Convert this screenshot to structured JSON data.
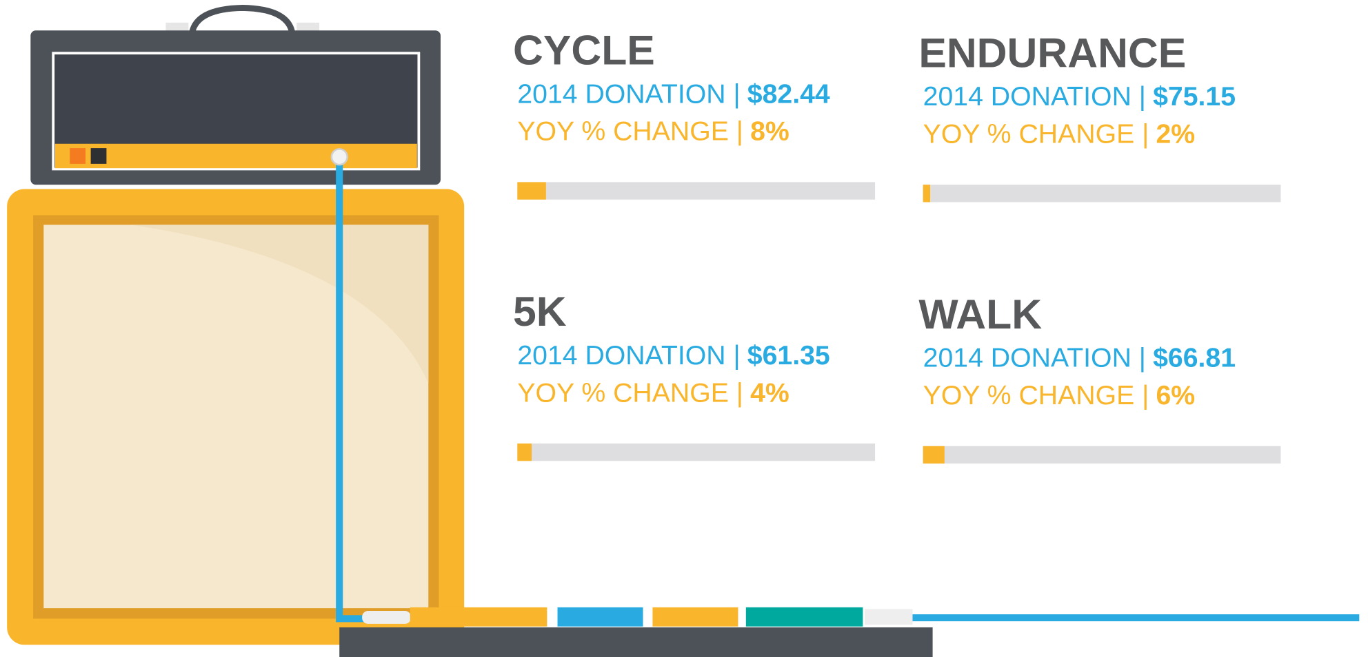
{
  "xlim": [
    0,
    100
  ],
  "panels": [
    {
      "title": "CYCLE",
      "donation_label": "2014 DONATION |",
      "donation": "$82.44",
      "change_label": "YOY % CHANGE |",
      "change": 8,
      "change_text": "8%"
    },
    {
      "title": "ENDURANCE",
      "donation_label": "2014 DONATION |",
      "donation": "$75.15",
      "change_label": "YOY % CHANGE |",
      "change": 2,
      "change_text": "2%"
    },
    {
      "title": "5K",
      "donation_label": "2014 DONATION |",
      "donation": "$61.35",
      "change_label": "YOY % CHANGE |",
      "change": 4,
      "change_text": "4%"
    },
    {
      "title": "WALK",
      "donation_label": "2014 DONATION |",
      "donation": "$66.81",
      "change_label": "YOY % CHANGE |",
      "change": 6,
      "change_text": "6%"
    }
  ]
}
